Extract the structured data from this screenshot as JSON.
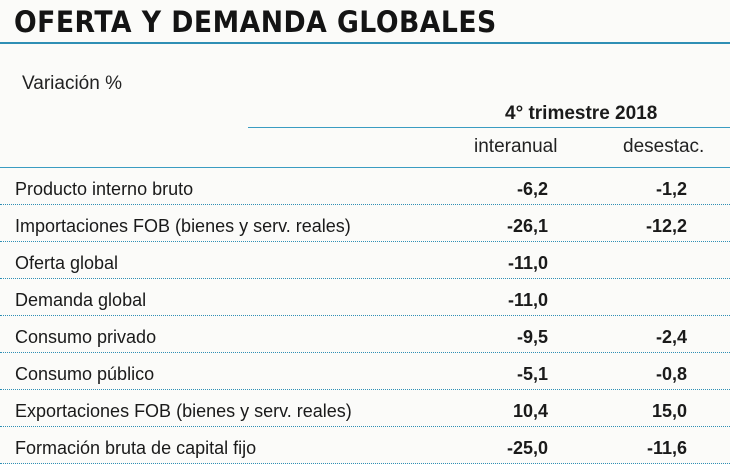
{
  "title": "OFERTA Y DEMANDA GLOBALES",
  "subtitle": "Variación %",
  "period": "4° trimestre 2018",
  "columns": [
    "interanual",
    "desestac."
  ],
  "colors": {
    "accent": "#2f8fb5"
  },
  "chart_data": {
    "type": "table",
    "title": "OFERTA Y DEMANDA GLOBALES",
    "subtitle": "Variación %",
    "period": "4° trimestre 2018",
    "columns": [
      "interanual",
      "desestac."
    ],
    "rows": [
      {
        "label": "Producto interno bruto",
        "interanual": "-6,2",
        "desestac": "-1,2"
      },
      {
        "label": "Importaciones FOB (bienes y serv. reales)",
        "interanual": "-26,1",
        "desestac": "-12,2"
      },
      {
        "label": "Oferta global",
        "interanual": "-11,0",
        "desestac": ""
      },
      {
        "label": "Demanda global",
        "interanual": "-11,0",
        "desestac": ""
      },
      {
        "label": "Consumo privado",
        "interanual": "-9,5",
        "desestac": "-2,4"
      },
      {
        "label": "Consumo público",
        "interanual": "-5,1",
        "desestac": "-0,8"
      },
      {
        "label": "Exportaciones FOB (bienes y serv. reales)",
        "interanual": "10,4",
        "desestac": "15,0"
      },
      {
        "label": "Formación bruta de capital fijo",
        "interanual": "-25,0",
        "desestac": "-11,6"
      }
    ]
  }
}
